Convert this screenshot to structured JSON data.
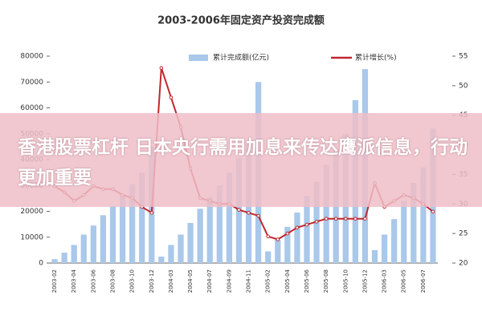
{
  "chart_data": {
    "type": "bar-line",
    "title": "2003-2006年固定资产投资完成额",
    "categories": [
      "2003-02",
      null,
      "2003-04",
      null,
      "2003-06",
      null,
      "2003-08",
      null,
      "2003-10",
      null,
      "2003-12",
      null,
      "2004-03",
      null,
      "2004-05",
      null,
      "2004-07",
      null,
      "2004-09",
      null,
      "2004-11",
      null,
      "2005-02",
      null,
      "2005-04",
      null,
      "2005-06",
      null,
      "2005-08",
      null,
      "2005-10",
      null,
      "2005-12",
      null,
      "2006-03",
      null,
      "2006-05",
      null,
      "2006-07",
      null
    ],
    "series": [
      {
        "name": "累计完成额(亿元)",
        "color": "#a9c8ea",
        "kind": "bar",
        "values": [
          1500,
          4000,
          7000,
          11000,
          14500,
          18500,
          22000,
          26000,
          30500,
          35000,
          45000,
          2500,
          7000,
          11000,
          15500,
          21000,
          25500,
          30000,
          35000,
          40500,
          46000,
          70000,
          4500,
          9000,
          14000,
          19500,
          26000,
          31500,
          38000,
          44000,
          50000,
          63000,
          75000,
          5000,
          11000,
          17000,
          24000,
          31000,
          37000,
          52000
        ]
      },
      {
        "name": "累计增长(%)",
        "color": "#c0272d",
        "kind": "line",
        "axis": "y2",
        "values": [
          33,
          32,
          30.5,
          31.5,
          33,
          32.5,
          32.5,
          31.5,
          31,
          29.5,
          28.5,
          53,
          48,
          43,
          36,
          31,
          30.5,
          30,
          30,
          29,
          28.5,
          28,
          24.5,
          24,
          25,
          26,
          26.5,
          27,
          27.5,
          27.5,
          27.5,
          27.5,
          27.5,
          33.5,
          29.5,
          30.5,
          31.5,
          31,
          30,
          28.7
        ]
      }
    ],
    "ylim": [
      0,
      80000
    ],
    "yticks": [
      0,
      10000,
      20000,
      30000,
      40000,
      50000,
      60000,
      70000,
      80000
    ],
    "y2lim": [
      20,
      55
    ],
    "y2ticks": [
      20,
      25,
      30,
      35,
      40,
      45,
      50,
      55
    ]
  },
  "overlay": {
    "headline": "香港股票杠杆 日本央行需用加息来传达鹰派信息，行动更加重要"
  }
}
